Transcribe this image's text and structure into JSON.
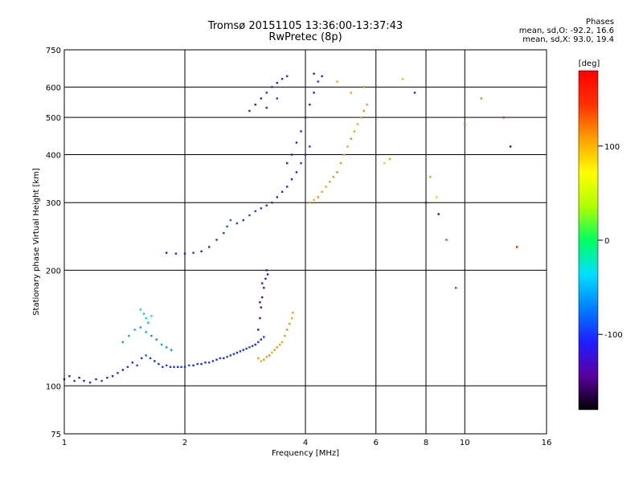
{
  "chart_data": {
    "type": "scatter",
    "title": "Tromsø 20151105 13:36:00-13:37:43",
    "subtitle": "RwPretec (8p)",
    "xlabel": "Frequency [MHz]",
    "ylabel": "Stationary phase Virtual Height [km]",
    "x_scale": "log",
    "y_scale": "log",
    "xlim": [
      1,
      16
    ],
    "ylim": [
      75,
      750
    ],
    "x_ticks": [
      1,
      2,
      4,
      6,
      8,
      10,
      16
    ],
    "x_tick_labels": [
      "1",
      "2",
      "4",
      "6",
      "8",
      "10",
      "16"
    ],
    "y_ticks": [
      75,
      100,
      200,
      300,
      400,
      500,
      600,
      750
    ],
    "y_tick_labels": [
      "75",
      "100",
      "200",
      "300",
      "400",
      "500",
      "600",
      "750"
    ],
    "grid": true,
    "phases": {
      "title": "Phases",
      "line_o": "mean, sd,O: -92.2, 16.6",
      "line_x": "mean, sd,X:  93.0, 19.4"
    },
    "colorbar": {
      "label": "[deg]",
      "range": [
        -180,
        180
      ],
      "ticks": [
        -100,
        0,
        100
      ],
      "tick_labels": [
        "-100",
        "0",
        "100"
      ],
      "colors": [
        "#000000",
        "#5a00a0",
        "#1e1eff",
        "#0080ff",
        "#00e0ff",
        "#00ff60",
        "#b0ff00",
        "#ffff00",
        "#ffa000",
        "#ff3000",
        "#ff0000"
      ]
    },
    "series": [
      {
        "points": [
          [
            1.0,
            104,
            -110
          ],
          [
            1.03,
            106,
            -115
          ],
          [
            1.06,
            103,
            -100
          ],
          [
            1.09,
            105,
            -105
          ],
          [
            1.12,
            103,
            -110
          ],
          [
            1.16,
            102,
            -100
          ],
          [
            1.2,
            104,
            -120
          ],
          [
            1.24,
            103,
            -95
          ],
          [
            1.28,
            105,
            -105
          ],
          [
            1.32,
            106,
            -110
          ],
          [
            1.36,
            108,
            -100
          ],
          [
            1.4,
            110,
            -115
          ],
          [
            1.44,
            112,
            -100
          ],
          [
            1.48,
            115,
            -105
          ],
          [
            1.52,
            113,
            -90
          ],
          [
            1.56,
            118,
            -100
          ],
          [
            1.6,
            120,
            -85
          ],
          [
            1.64,
            118,
            -100
          ],
          [
            1.68,
            116,
            -110
          ],
          [
            1.72,
            114,
            -105
          ],
          [
            1.76,
            112,
            -100
          ],
          [
            1.8,
            113,
            -95
          ],
          [
            1.84,
            112,
            -100
          ],
          [
            1.88,
            112,
            -105
          ],
          [
            1.92,
            112,
            -110
          ],
          [
            1.96,
            112,
            -100
          ],
          [
            2.0,
            112,
            -100
          ],
          [
            2.05,
            113,
            -95
          ],
          [
            2.1,
            113,
            -110
          ],
          [
            2.15,
            114,
            -100
          ],
          [
            2.2,
            114,
            -105
          ],
          [
            2.25,
            115,
            -100
          ],
          [
            2.3,
            115,
            -95
          ],
          [
            2.35,
            116,
            -100
          ],
          [
            2.4,
            117,
            -110
          ],
          [
            2.45,
            118,
            -100
          ],
          [
            2.5,
            118,
            -105
          ],
          [
            2.55,
            119,
            -95
          ],
          [
            2.6,
            120,
            -100
          ],
          [
            2.65,
            121,
            -100
          ],
          [
            2.7,
            122,
            -110
          ],
          [
            2.75,
            123,
            -100
          ],
          [
            2.8,
            124,
            -105
          ],
          [
            2.85,
            125,
            -100
          ],
          [
            2.9,
            126,
            -95
          ],
          [
            2.95,
            127,
            -100
          ],
          [
            3.0,
            128,
            -110
          ],
          [
            3.05,
            130,
            -100
          ],
          [
            3.1,
            132,
            -105
          ],
          [
            3.15,
            134,
            -100
          ]
        ]
      },
      {
        "points": [
          [
            1.4,
            130,
            -60
          ],
          [
            1.45,
            135,
            -55
          ],
          [
            1.5,
            140,
            -50
          ],
          [
            1.55,
            142,
            -60
          ],
          [
            1.6,
            138,
            -55
          ],
          [
            1.65,
            135,
            -65
          ],
          [
            1.7,
            132,
            -70
          ],
          [
            1.75,
            128,
            -60
          ],
          [
            1.8,
            126,
            -65
          ],
          [
            1.85,
            124,
            -70
          ],
          [
            1.55,
            158,
            -40
          ],
          [
            1.58,
            154,
            -45
          ],
          [
            1.6,
            150,
            -40
          ],
          [
            1.62,
            146,
            -50
          ],
          [
            1.65,
            152,
            -35
          ]
        ]
      },
      {
        "points": [
          [
            3.05,
            118,
            110
          ],
          [
            3.1,
            116,
            105
          ],
          [
            3.15,
            117,
            115
          ],
          [
            3.2,
            119,
            110
          ],
          [
            3.25,
            120,
            120
          ],
          [
            3.3,
            122,
            105
          ],
          [
            3.35,
            124,
            110
          ],
          [
            3.4,
            126,
            115
          ],
          [
            3.45,
            128,
            110
          ],
          [
            3.5,
            130,
            105
          ],
          [
            3.55,
            135,
            110
          ],
          [
            3.6,
            140,
            115
          ],
          [
            3.65,
            145,
            110
          ],
          [
            3.7,
            150,
            105
          ],
          [
            3.72,
            155,
            110
          ]
        ]
      },
      {
        "points": [
          [
            3.05,
            140,
            -140
          ],
          [
            3.08,
            150,
            -135
          ],
          [
            3.1,
            160,
            -130
          ],
          [
            3.12,
            170,
            -140
          ],
          [
            3.15,
            180,
            -135
          ],
          [
            3.18,
            190,
            -130
          ],
          [
            3.2,
            200,
            -140
          ],
          [
            3.22,
            195,
            -135
          ],
          [
            3.12,
            185,
            -130
          ],
          [
            3.08,
            165,
            -140
          ]
        ]
      },
      {
        "points": [
          [
            1.8,
            222,
            -110
          ],
          [
            1.9,
            221,
            -105
          ],
          [
            2.0,
            221,
            -110
          ],
          [
            2.1,
            222,
            -100
          ],
          [
            2.2,
            224,
            -110
          ],
          [
            2.3,
            230,
            -105
          ],
          [
            2.4,
            240,
            -100
          ],
          [
            2.5,
            250,
            -95
          ],
          [
            2.55,
            260,
            -90
          ],
          [
            2.6,
            270,
            -85
          ],
          [
            2.7,
            265,
            -95
          ],
          [
            2.8,
            270,
            -100
          ],
          [
            2.9,
            278,
            -90
          ],
          [
            3.0,
            285,
            -95
          ],
          [
            3.1,
            290,
            -100
          ],
          [
            3.2,
            295,
            -105
          ],
          [
            3.3,
            300,
            -100
          ],
          [
            3.4,
            310,
            -110
          ],
          [
            3.5,
            320,
            -105
          ],
          [
            3.6,
            330,
            -110
          ],
          [
            3.7,
            345,
            -115
          ],
          [
            3.8,
            360,
            -110
          ],
          [
            3.9,
            380,
            -105
          ],
          [
            4.0,
            400,
            -110
          ],
          [
            4.1,
            420,
            -100
          ],
          [
            3.6,
            380,
            -120
          ],
          [
            3.7,
            400,
            -115
          ],
          [
            3.8,
            430,
            -110
          ],
          [
            3.9,
            460,
            -105
          ],
          [
            4.0,
            500,
            -110
          ],
          [
            4.1,
            540,
            -105
          ],
          [
            4.2,
            580,
            -110
          ],
          [
            4.3,
            620,
            -100
          ],
          [
            4.4,
            640,
            -105
          ],
          [
            4.2,
            650,
            -110
          ]
        ]
      },
      {
        "points": [
          [
            2.9,
            520,
            -110
          ],
          [
            3.0,
            540,
            -105
          ],
          [
            3.1,
            560,
            -110
          ],
          [
            3.2,
            580,
            -100
          ],
          [
            3.3,
            600,
            -105
          ],
          [
            3.4,
            615,
            -110
          ],
          [
            3.5,
            630,
            -100
          ],
          [
            3.6,
            640,
            -105
          ],
          [
            3.2,
            530,
            -110
          ],
          [
            3.4,
            560,
            -100
          ]
        ]
      },
      {
        "points": [
          [
            4.1,
            300,
            110
          ],
          [
            4.2,
            305,
            105
          ],
          [
            4.3,
            310,
            115
          ],
          [
            4.4,
            320,
            110
          ],
          [
            4.5,
            330,
            105
          ],
          [
            4.6,
            340,
            110
          ],
          [
            4.7,
            350,
            115
          ],
          [
            4.8,
            360,
            120
          ],
          [
            4.9,
            380,
            110
          ],
          [
            5.0,
            400,
            105
          ],
          [
            5.1,
            420,
            110
          ],
          [
            5.2,
            440,
            115
          ],
          [
            5.3,
            460,
            110
          ],
          [
            5.4,
            480,
            105
          ],
          [
            5.5,
            500,
            110
          ],
          [
            5.6,
            520,
            115
          ],
          [
            5.7,
            540,
            110
          ],
          [
            5.6,
            600,
            120
          ],
          [
            5.2,
            580,
            110
          ],
          [
            4.8,
            620,
            105
          ]
        ]
      },
      {
        "points": [
          [
            6.3,
            380,
            90
          ],
          [
            6.5,
            390,
            110
          ],
          [
            7.0,
            630,
            100
          ],
          [
            7.5,
            580,
            -110
          ],
          [
            8.0,
            300,
            -130
          ],
          [
            8.2,
            350,
            110
          ],
          [
            8.5,
            310,
            90
          ],
          [
            8.6,
            280,
            -150
          ],
          [
            9.0,
            240,
            140
          ],
          [
            9.5,
            180,
            150
          ],
          [
            10.0,
            480,
            130
          ],
          [
            11.0,
            560,
            120
          ],
          [
            12.5,
            500,
            150
          ],
          [
            13.0,
            420,
            -150
          ],
          [
            13.5,
            230,
            160
          ]
        ]
      }
    ]
  }
}
